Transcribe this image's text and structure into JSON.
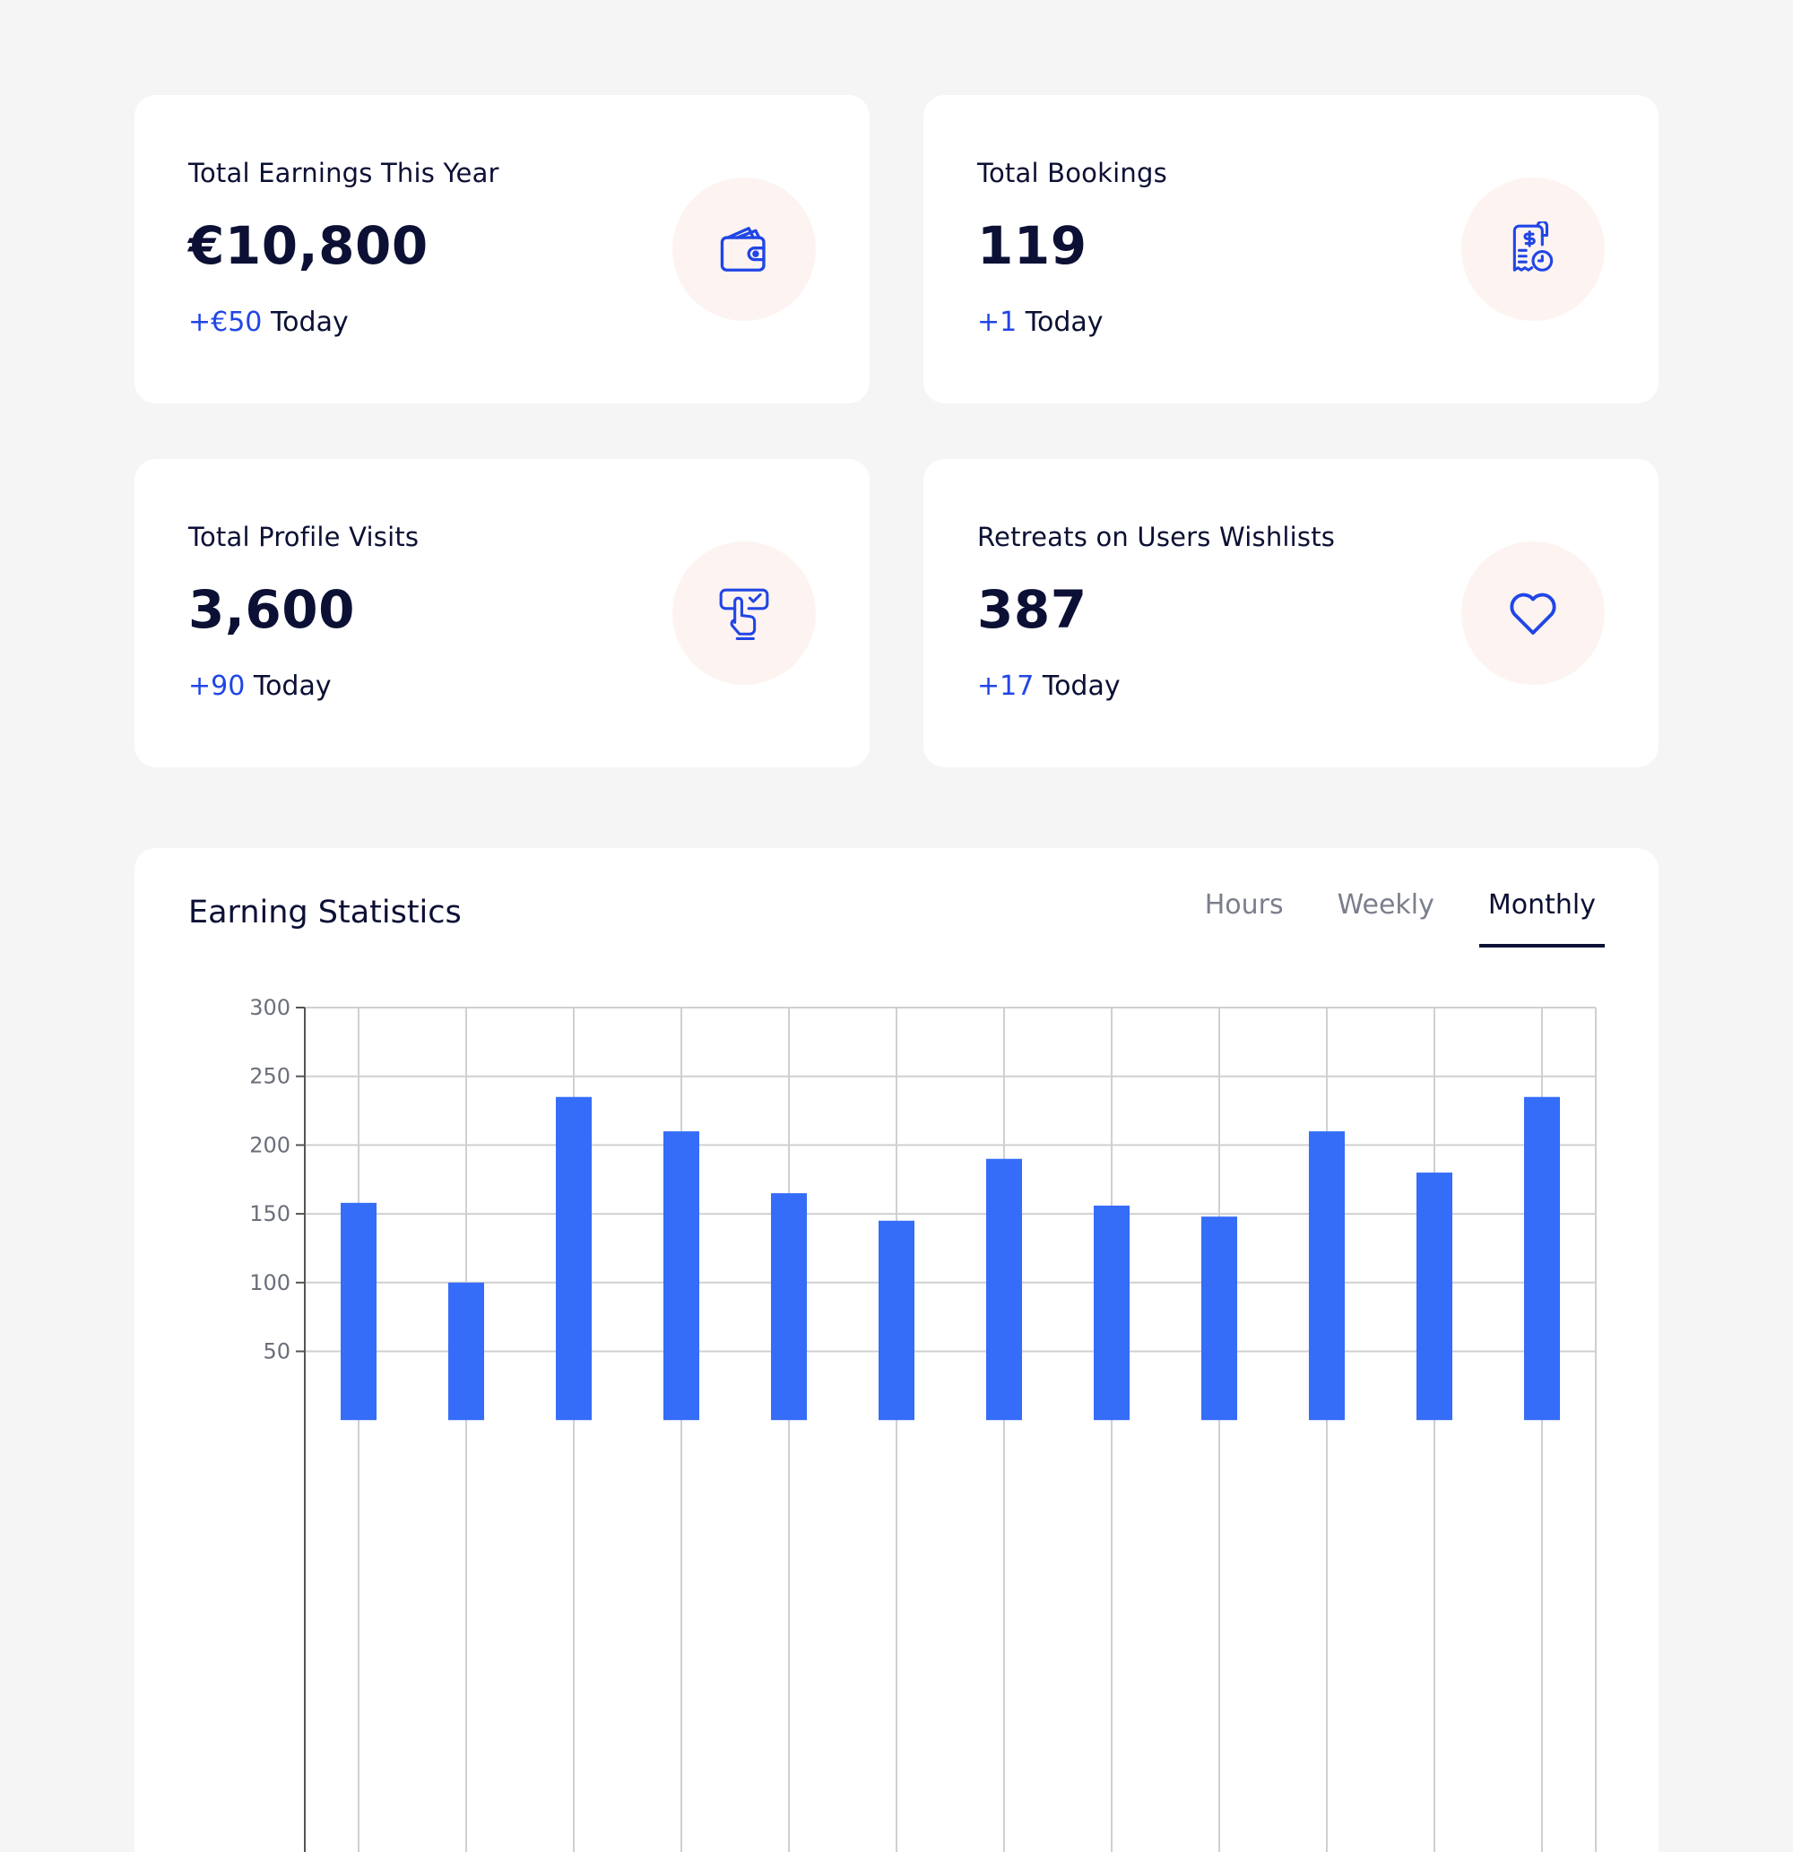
{
  "stats": [
    {
      "title": "Total Earnings This Year",
      "value": "€10,800",
      "delta": "+€50",
      "delta_suffix": " Today",
      "icon": "wallet-icon"
    },
    {
      "title": "Total Bookings",
      "value": "119",
      "delta": "+1",
      "delta_suffix": " Today",
      "icon": "receipt-clock-icon"
    },
    {
      "title": "Total Profile Visits",
      "value": "3,600",
      "delta": "+90",
      "delta_suffix": " Today",
      "icon": "hand-click-icon"
    },
    {
      "title": "Retreats on Users Wishlists",
      "value": "387",
      "delta": "+17",
      "delta_suffix": " Today",
      "icon": "heart-icon"
    }
  ],
  "earning_statistics": {
    "title": "Earning Statistics",
    "tabs": [
      {
        "label": "Hours",
        "active": false
      },
      {
        "label": "Weekly",
        "active": false
      },
      {
        "label": "Monthly",
        "active": true
      }
    ]
  },
  "colors": {
    "accent": "#2146e6",
    "bar": "#356df8",
    "text_dark": "#0b1034",
    "icon_bg": "#fdf4f1",
    "page_bg": "#f5f5f5"
  },
  "chart_data": {
    "type": "bar",
    "title": "",
    "xlabel": "",
    "ylabel": "",
    "ylim": [
      0,
      300
    ],
    "yticks": [
      50,
      100,
      150,
      200,
      250,
      300
    ],
    "grid": true,
    "values": [
      158,
      100,
      235,
      210,
      165,
      145,
      190,
      156,
      148,
      210,
      180,
      235
    ]
  }
}
